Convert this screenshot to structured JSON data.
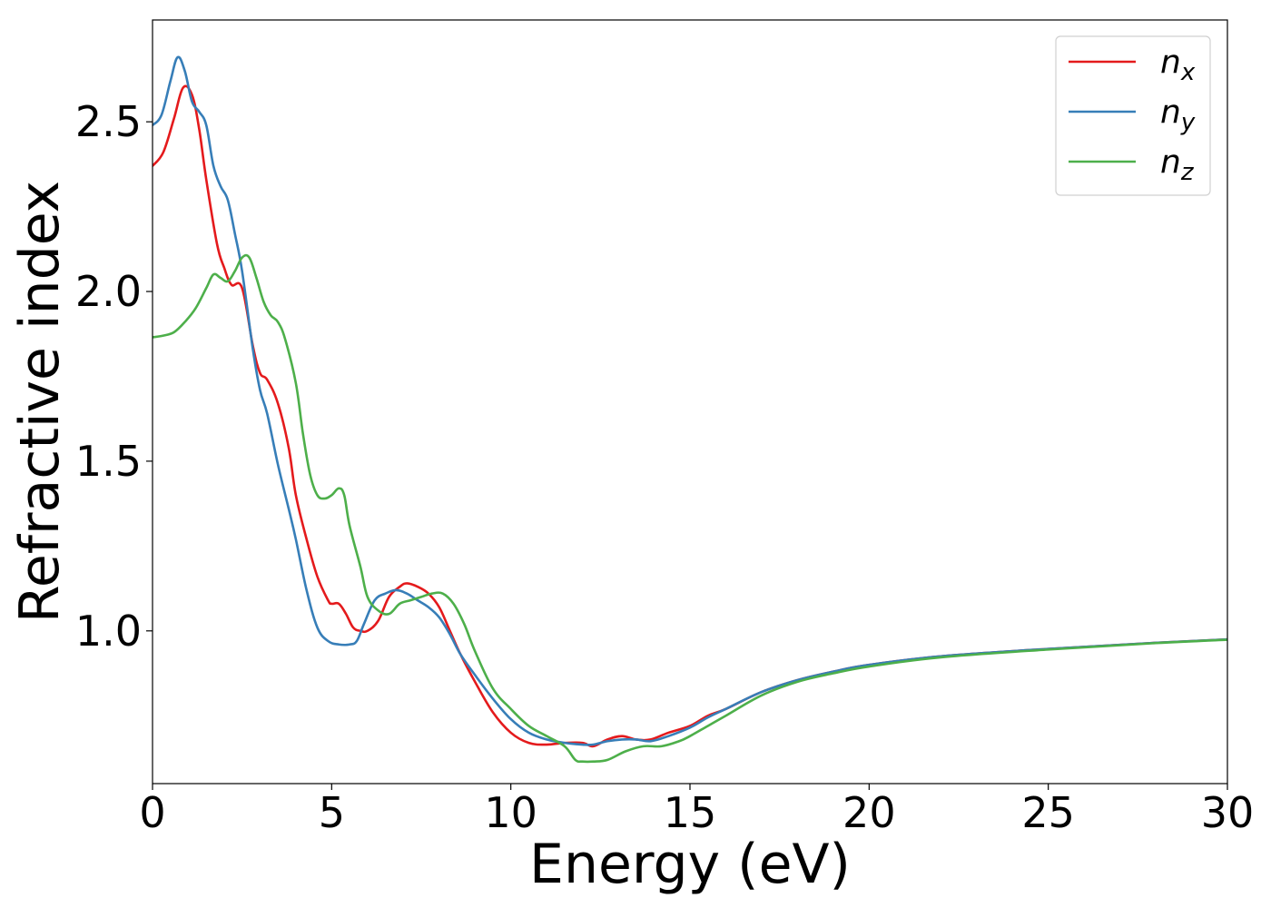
{
  "chart_data": {
    "type": "line",
    "title": "",
    "xlabel": "Energy (eV)",
    "ylabel": "Refractive index",
    "xlim": [
      0,
      30
    ],
    "ylim": [
      0.55,
      2.8
    ],
    "xticks": [
      0,
      5,
      10,
      15,
      20,
      25,
      30
    ],
    "xtick_labels": [
      "0",
      "5",
      "10",
      "15",
      "20",
      "25",
      "30"
    ],
    "yticks": [
      1.0,
      1.5,
      2.0,
      2.5
    ],
    "ytick_labels": [
      "1.0",
      "1.5",
      "2.0",
      "2.5"
    ],
    "grid": false,
    "legend": "top-right",
    "series": [
      {
        "name": "n",
        "sub": "x",
        "color": "#e41a1c",
        "x": [
          0,
          0.3,
          0.6,
          0.85,
          1.1,
          1.3,
          1.5,
          1.8,
          2.0,
          2.2,
          2.5,
          2.8,
          3.0,
          3.2,
          3.5,
          3.8,
          4.0,
          4.3,
          4.6,
          4.9,
          5.0,
          5.2,
          5.4,
          5.6,
          5.8,
          6.0,
          6.3,
          6.6,
          6.9,
          7.1,
          7.4,
          7.7,
          8.0,
          8.3,
          8.6,
          9.0,
          9.5,
          10.0,
          10.5,
          11.0,
          11.5,
          12.0,
          12.3,
          12.7,
          13.1,
          13.5,
          13.9,
          14.4,
          15.0,
          15.5,
          16.0,
          17.0,
          18.0,
          19.0,
          20.0,
          22.0,
          25.0,
          28.0,
          30.0
        ],
        "y": [
          2.37,
          2.41,
          2.51,
          2.6,
          2.58,
          2.48,
          2.33,
          2.14,
          2.07,
          2.02,
          2.01,
          1.84,
          1.76,
          1.74,
          1.67,
          1.54,
          1.4,
          1.27,
          1.16,
          1.09,
          1.08,
          1.08,
          1.05,
          1.01,
          1.0,
          1.0,
          1.03,
          1.1,
          1.13,
          1.14,
          1.13,
          1.11,
          1.07,
          1.0,
          0.93,
          0.85,
          0.76,
          0.7,
          0.67,
          0.665,
          0.67,
          0.67,
          0.66,
          0.68,
          0.69,
          0.68,
          0.68,
          0.7,
          0.72,
          0.75,
          0.77,
          0.82,
          0.855,
          0.88,
          0.9,
          0.925,
          0.947,
          0.965,
          0.975
        ]
      },
      {
        "name": "n",
        "sub": "y",
        "color": "#377eb8",
        "x": [
          0,
          0.25,
          0.5,
          0.7,
          0.9,
          1.1,
          1.3,
          1.5,
          1.7,
          1.9,
          2.1,
          2.3,
          2.5,
          2.8,
          3.0,
          3.2,
          3.5,
          3.8,
          4.0,
          4.3,
          4.6,
          4.9,
          5.2,
          5.5,
          5.7,
          5.9,
          6.2,
          6.5,
          6.8,
          7.1,
          7.4,
          7.7,
          8.0,
          8.3,
          8.6,
          9.0,
          9.5,
          10.0,
          10.5,
          11.0,
          11.5,
          12.0,
          12.3,
          12.7,
          13.1,
          13.5,
          13.9,
          14.4,
          15.0,
          15.5,
          16.0,
          17.0,
          18.0,
          19.0,
          20.0,
          22.0,
          25.0,
          28.0,
          30.0
        ],
        "y": [
          2.49,
          2.52,
          2.62,
          2.69,
          2.65,
          2.56,
          2.53,
          2.49,
          2.37,
          2.31,
          2.27,
          2.17,
          2.06,
          1.83,
          1.71,
          1.64,
          1.49,
          1.36,
          1.27,
          1.12,
          1.01,
          0.97,
          0.96,
          0.96,
          0.97,
          1.02,
          1.09,
          1.11,
          1.12,
          1.11,
          1.09,
          1.07,
          1.04,
          0.99,
          0.93,
          0.87,
          0.8,
          0.74,
          0.7,
          0.68,
          0.67,
          0.665,
          0.665,
          0.675,
          0.68,
          0.68,
          0.675,
          0.69,
          0.715,
          0.745,
          0.77,
          0.82,
          0.855,
          0.88,
          0.9,
          0.925,
          0.947,
          0.965,
          0.975
        ]
      },
      {
        "name": "n",
        "sub": "z",
        "color": "#4daf4a",
        "x": [
          0,
          0.3,
          0.6,
          0.9,
          1.2,
          1.5,
          1.7,
          1.9,
          2.1,
          2.3,
          2.5,
          2.7,
          2.9,
          3.1,
          3.3,
          3.5,
          3.7,
          4.0,
          4.2,
          4.4,
          4.6,
          4.8,
          5.0,
          5.2,
          5.35,
          5.5,
          5.8,
          6.0,
          6.3,
          6.6,
          6.9,
          7.2,
          7.5,
          7.8,
          8.1,
          8.4,
          8.7,
          9.0,
          9.5,
          10.0,
          10.5,
          11.0,
          11.5,
          11.8,
          12.0,
          12.3,
          12.7,
          13.2,
          13.7,
          14.2,
          14.7,
          15.0,
          15.5,
          16.0,
          17.0,
          18.0,
          19.0,
          20.0,
          22.0,
          25.0,
          28.0,
          30.0
        ],
        "y": [
          1.865,
          1.87,
          1.88,
          1.91,
          1.95,
          2.01,
          2.05,
          2.04,
          2.03,
          2.06,
          2.1,
          2.1,
          2.04,
          1.97,
          1.93,
          1.91,
          1.86,
          1.73,
          1.58,
          1.46,
          1.4,
          1.39,
          1.4,
          1.42,
          1.4,
          1.31,
          1.19,
          1.1,
          1.06,
          1.05,
          1.08,
          1.09,
          1.1,
          1.11,
          1.11,
          1.08,
          1.02,
          0.94,
          0.83,
          0.77,
          0.72,
          0.69,
          0.66,
          0.62,
          0.615,
          0.615,
          0.62,
          0.645,
          0.66,
          0.66,
          0.675,
          0.69,
          0.72,
          0.75,
          0.81,
          0.85,
          0.875,
          0.895,
          0.922,
          0.945,
          0.964,
          0.974
        ]
      }
    ]
  }
}
